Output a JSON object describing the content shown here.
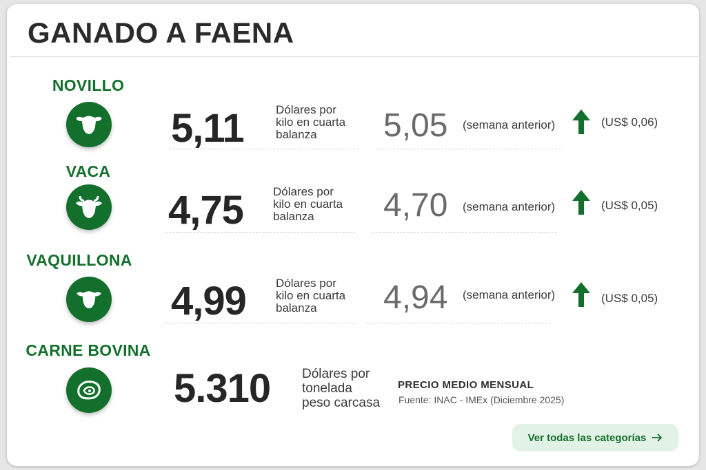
{
  "title": "GANADO A FAENA",
  "categories": [
    {
      "name": "NOVILLO",
      "icon": "cow-head-icon",
      "price": "5,11",
      "unit_line1": "Dólares por",
      "unit_line2": "kilo en cuarta",
      "unit_line3": "balanza",
      "previous": "5,05",
      "previous_label": "(semana anterior)",
      "trend": "up",
      "diff": "(US$ 0,06)"
    },
    {
      "name": "VACA",
      "icon": "horned-cow-head-icon",
      "price": "4,75",
      "unit_line1": "Dólares por",
      "unit_line2": "kilo en cuarta",
      "unit_line3": "balanza",
      "previous": "4,70",
      "previous_label": "(semana anterior)",
      "trend": "up",
      "diff": "(US$ 0,05)"
    },
    {
      "name": "VAQUILLONA",
      "icon": "heifer-head-icon",
      "price": "4,99",
      "unit_line1": "Dólares por",
      "unit_line2": "kilo en cuarta",
      "unit_line3": "balanza",
      "previous": "4,94",
      "previous_label": "(semana anterior)",
      "trend": "up",
      "diff": "(US$ 0,05)"
    },
    {
      "name": "CARNE BOVINA",
      "icon": "beef-cut-icon",
      "price": "5.310",
      "unit_line1": "Dólares por",
      "unit_line2": "tonelada",
      "unit_line3": "peso carcasa",
      "period_label": "PRECIO MEDIO MENSUAL",
      "source": "Fuente: INAC - IMEx (Diciembre 2025)"
    }
  ],
  "cta": {
    "label": "Ver todas las categorías",
    "icon": "arrow-right-icon"
  },
  "colors": {
    "brand_green": "#13702c",
    "cta_background": "#e3f2e6",
    "text_dark": "#262626",
    "text_muted": "#6a6a6a"
  }
}
